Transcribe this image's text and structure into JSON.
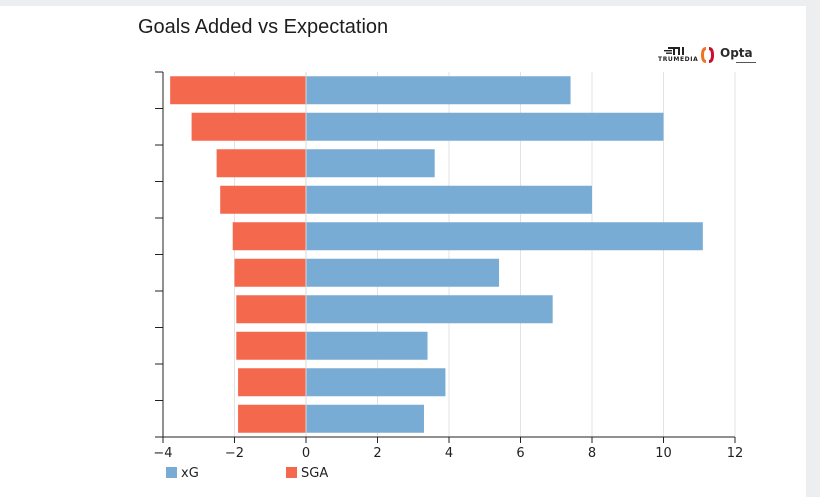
{
  "header": {
    "title": "Goals Added vs Expectation"
  },
  "logos": {
    "trumedia": "TRUMEDIA",
    "opta": "Opta",
    "opta_color": "#ee7422"
  },
  "chart_data": {
    "type": "bar",
    "orientation": "horizontal",
    "stacked": "diverging",
    "title": "Goals Added vs Expectation",
    "xlabel": "",
    "ylabel": "",
    "xlim": [
      -4,
      12
    ],
    "xticks": [
      -4,
      -2,
      0,
      2,
      4,
      6,
      8,
      10,
      12
    ],
    "categories": [
      "",
      "",
      "",
      "",
      "",
      "",
      "",
      "",
      "",
      ""
    ],
    "grid": true,
    "legend_position": "bottom-left",
    "series": [
      {
        "name": "xG",
        "color": "#78acd4",
        "values": [
          7.4,
          10.0,
          3.6,
          8.0,
          11.1,
          5.4,
          6.9,
          3.4,
          3.9,
          3.3
        ]
      },
      {
        "name": "SGA",
        "color": "#f4694e",
        "values": [
          -3.8,
          -3.2,
          -2.5,
          -2.4,
          -2.05,
          -2.0,
          -1.95,
          -1.95,
          -1.9,
          -1.9
        ]
      }
    ]
  }
}
